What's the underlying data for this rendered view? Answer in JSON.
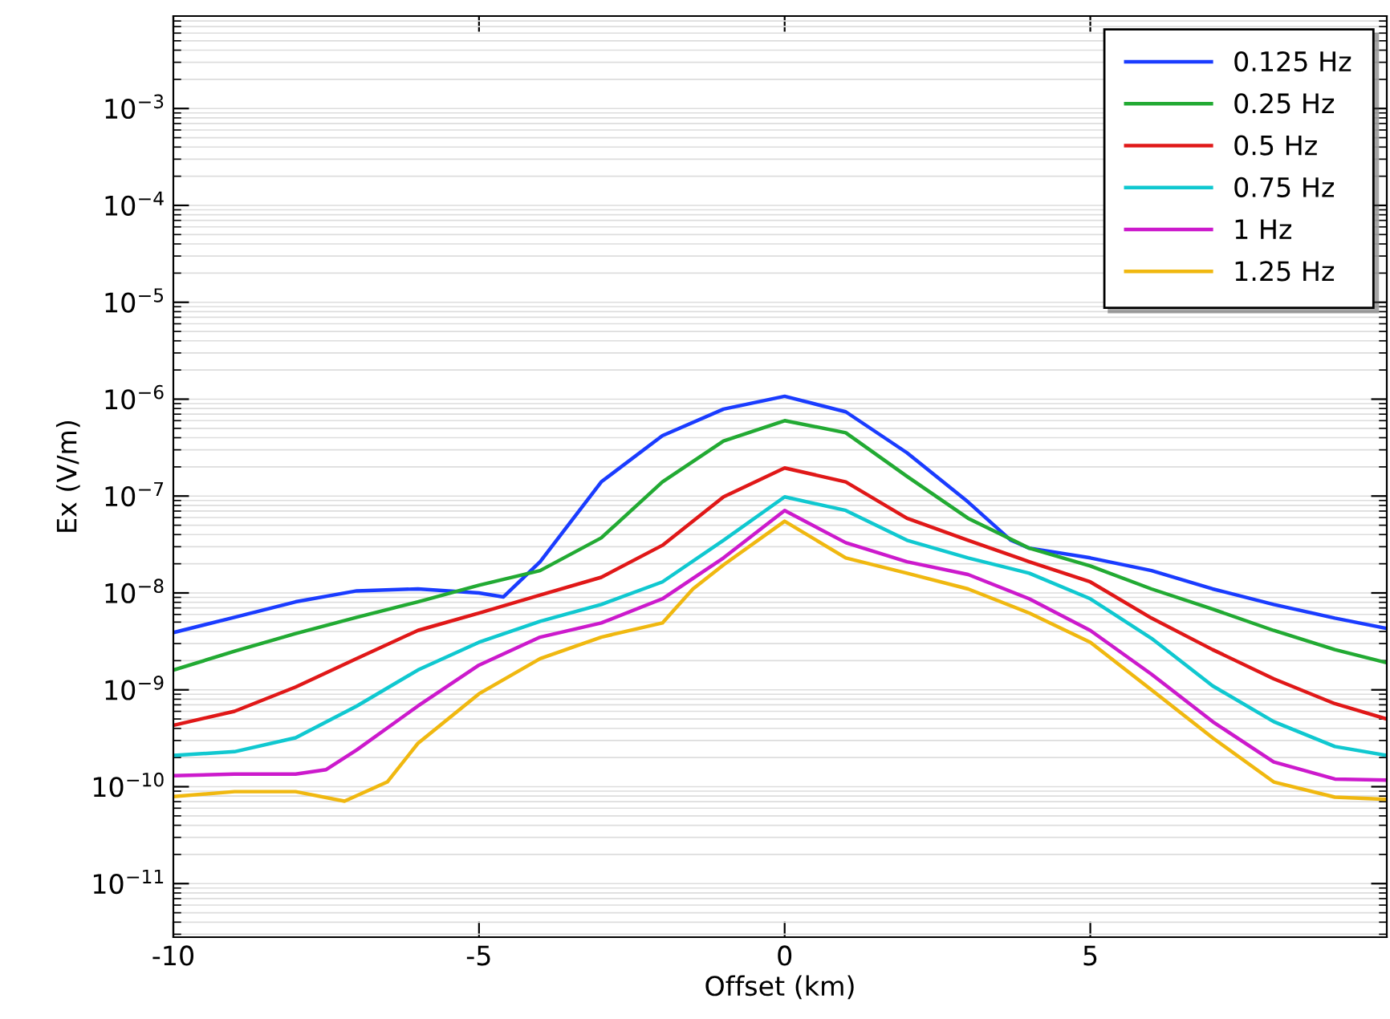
{
  "chart_data": {
    "type": "line",
    "xlabel": "Offset (km)",
    "ylabel": "Ex (V/m)",
    "log": "y",
    "grid": "y",
    "legend": "top right",
    "line_style": "solid",
    "marker": "none",
    "xlim": [
      -10,
      9.85
    ],
    "xticks": [
      -10,
      -5,
      0,
      5
    ],
    "ylim": [
      2.8e-12,
      0.009
    ],
    "yticks": [
      {
        "value": 1e-11,
        "label": "10$^{−11}$"
      },
      {
        "value": 1e-10,
        "label": "10$^{−10}$"
      },
      {
        "value": 1e-09,
        "label": "10$^{−9}$"
      },
      {
        "value": 1e-08,
        "label": "10$^{−8}$"
      },
      {
        "value": 1e-07,
        "label": "10$^{−7}$"
      },
      {
        "value": 1e-06,
        "label": "10$^{−6}$"
      },
      {
        "value": 1e-05,
        "label": "10$^{−5}$"
      },
      {
        "value": 0.0001,
        "label": "10$^{−4}$"
      },
      {
        "value": 0.001,
        "label": "10$^{−3}$"
      }
    ],
    "series": [
      {
        "name": "0.125 Hz",
        "color": "#1a3cff",
        "x": [
          -10,
          -9,
          -8,
          -7,
          -6,
          -5,
          -4.6,
          -4,
          -3,
          -2,
          -1,
          0,
          1,
          2,
          3,
          3.7,
          4,
          5,
          6,
          7,
          8,
          9,
          9.85
        ],
        "values": [
          3.9e-09,
          5.6e-09,
          8.1e-09,
          1.05e-08,
          1.1e-08,
          1e-08,
          9.1e-09,
          2.1e-08,
          1.4e-07,
          4.2e-07,
          7.9e-07,
          1.07e-06,
          7.4e-07,
          2.8e-07,
          8.7e-08,
          3.5e-08,
          2.9e-08,
          2.3e-08,
          1.7e-08,
          1.1e-08,
          7.6e-09,
          5.5e-09,
          4.3e-09
        ]
      },
      {
        "name": "0.25 Hz",
        "color": "#22aa33",
        "x": [
          -10,
          -9,
          -8,
          -7,
          -6,
          -5,
          -4,
          -3,
          -2,
          -1,
          0,
          1,
          2,
          3,
          4,
          5,
          6,
          7,
          8,
          9,
          9.85
        ],
        "values": [
          1.6e-09,
          2.5e-09,
          3.8e-09,
          5.6e-09,
          8.1e-09,
          1.2e-08,
          1.7e-08,
          3.7e-08,
          1.4e-07,
          3.7e-07,
          6e-07,
          4.5e-07,
          1.6e-07,
          5.9e-08,
          2.9e-08,
          1.9e-08,
          1.1e-08,
          6.8e-09,
          4.1e-09,
          2.6e-09,
          1.9e-09
        ]
      },
      {
        "name": "0.5 Hz",
        "color": "#e01818",
        "x": [
          -10,
          -9,
          -8,
          -7,
          -6,
          -5,
          -4,
          -3,
          -2,
          -1,
          0,
          1,
          2,
          3,
          4,
          5,
          6,
          7,
          8,
          9,
          9.85
        ],
        "values": [
          4.3e-10,
          6e-10,
          1.07e-09,
          2.1e-09,
          4.1e-09,
          6.2e-09,
          9.5e-09,
          1.45e-08,
          3.1e-08,
          9.8e-08,
          1.95e-07,
          1.4e-07,
          5.9e-08,
          3.5e-08,
          2.1e-08,
          1.3e-08,
          5.5e-09,
          2.6e-09,
          1.3e-09,
          7.2e-10,
          5e-10
        ]
      },
      {
        "name": "0.75 Hz",
        "color": "#10c8d0",
        "x": [
          -10,
          -9,
          -8,
          -7,
          -6,
          -5,
          -4,
          -3,
          -2,
          -1,
          0,
          1,
          2,
          3,
          4,
          5,
          6,
          7,
          8,
          9,
          9.85
        ],
        "values": [
          2.1e-10,
          2.3e-10,
          3.2e-10,
          6.8e-10,
          1.6e-09,
          3.1e-09,
          5.1e-09,
          7.6e-09,
          1.3e-08,
          3.5e-08,
          9.8e-08,
          7.1e-08,
          3.5e-08,
          2.3e-08,
          1.6e-08,
          8.7e-09,
          3.4e-09,
          1.1e-09,
          4.7e-10,
          2.6e-10,
          2.1e-10
        ]
      },
      {
        "name": "1 Hz",
        "color": "#cc1acc",
        "x": [
          -10,
          -9,
          -8,
          -7.5,
          -7,
          -6,
          -5,
          -4,
          -3,
          -2,
          -1,
          0,
          1,
          2,
          3,
          4,
          5,
          6,
          7,
          8,
          9,
          9.85
        ],
        "values": [
          1.3e-10,
          1.35e-10,
          1.35e-10,
          1.5e-10,
          2.4e-10,
          6.8e-10,
          1.8e-09,
          3.5e-09,
          4.9e-09,
          8.7e-09,
          2.3e-08,
          7.1e-08,
          3.3e-08,
          2.1e-08,
          1.55e-08,
          8.7e-09,
          4.1e-09,
          1.45e-09,
          4.7e-10,
          1.8e-10,
          1.2e-10,
          1.17e-10
        ]
      },
      {
        "name": "1.25 Hz",
        "color": "#f0b810",
        "x": [
          -10,
          -9,
          -8,
          -7.2,
          -6.5,
          -6,
          -5,
          -4,
          -3,
          -2,
          -1.5,
          -1,
          0,
          1,
          2,
          3,
          4,
          5,
          6,
          7,
          8,
          9,
          9.85
        ],
        "values": [
          7.9e-11,
          8.9e-11,
          8.9e-11,
          7.1e-11,
          1.12e-10,
          2.8e-10,
          9.1e-10,
          2.1e-09,
          3.5e-09,
          4.9e-09,
          1.1e-08,
          1.95e-08,
          5.5e-08,
          2.3e-08,
          1.6e-08,
          1.1e-08,
          6.2e-09,
          3.1e-09,
          1e-09,
          3.2e-10,
          1.12e-10,
          7.8e-11,
          7.4e-11
        ]
      }
    ]
  }
}
